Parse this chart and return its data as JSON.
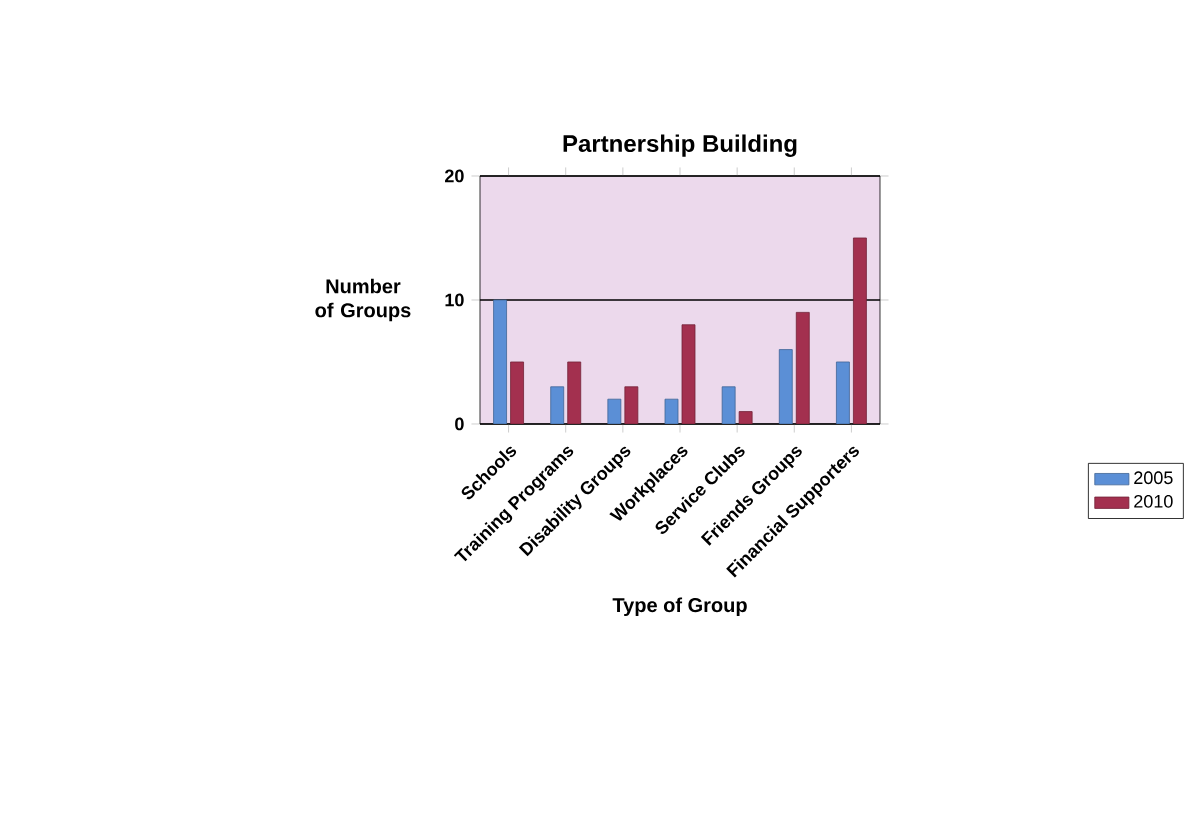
{
  "chart_data": {
    "type": "bar",
    "title": "Partnership Building",
    "xlabel": "Type of Group",
    "ylabel": "Number of Groups",
    "categories": [
      "Schools",
      "Training Programs",
      "Disability Groups",
      "Workplaces",
      "Service Clubs",
      "Friends Groups",
      "Financial Supporters"
    ],
    "series": [
      {
        "name": "2005",
        "color": "#5b8fd6",
        "values": [
          10,
          3,
          2,
          2,
          3,
          6,
          5
        ]
      },
      {
        "name": "2010",
        "color": "#a3304f",
        "values": [
          5,
          5,
          3,
          8,
          1,
          9,
          15
        ]
      }
    ],
    "ylim": [
      0,
      20
    ],
    "yticks": [
      0,
      10,
      20
    ],
    "grid": "y",
    "legend": "right"
  }
}
